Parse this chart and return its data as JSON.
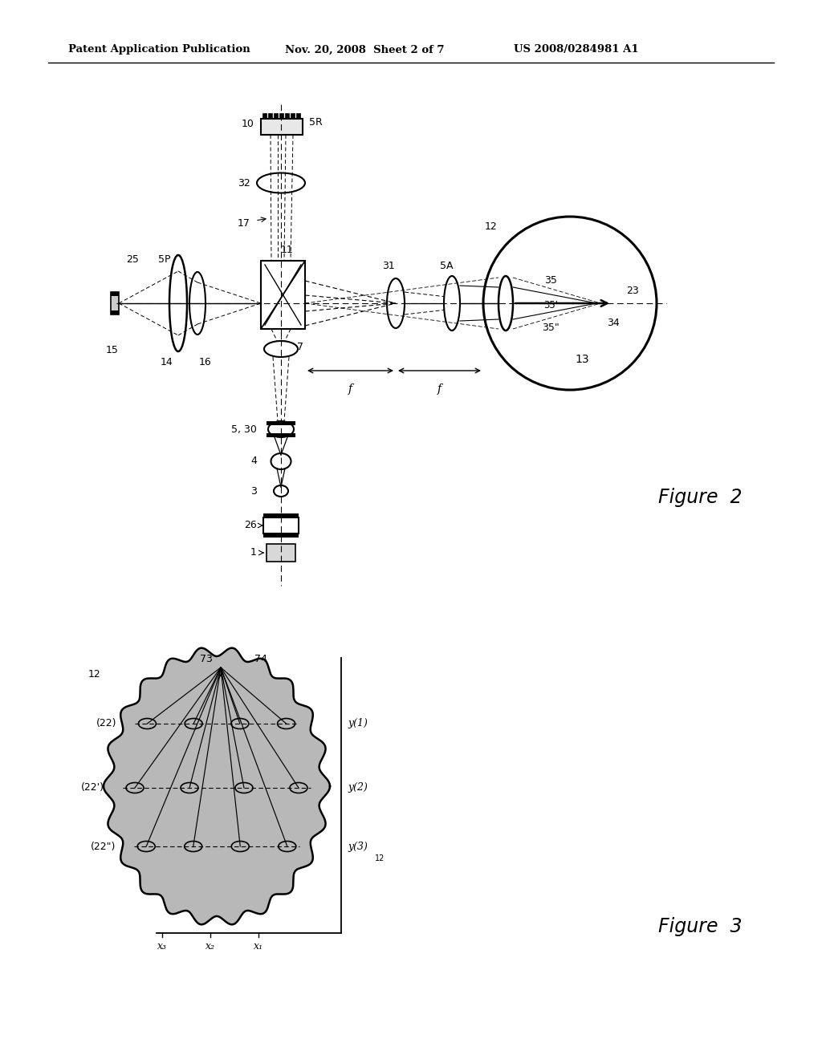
{
  "header_left": "Patent Application Publication",
  "header_center": "Nov. 20, 2008  Sheet 2 of 7",
  "header_right": "US 2008/0284981 A1",
  "fig2_label": "Figure  2",
  "fig3_label": "Figure  3",
  "bg_color": "#ffffff",
  "line_color": "#000000",
  "gray_fill": "#aaaaaa",
  "light_gray": "#dddddd"
}
